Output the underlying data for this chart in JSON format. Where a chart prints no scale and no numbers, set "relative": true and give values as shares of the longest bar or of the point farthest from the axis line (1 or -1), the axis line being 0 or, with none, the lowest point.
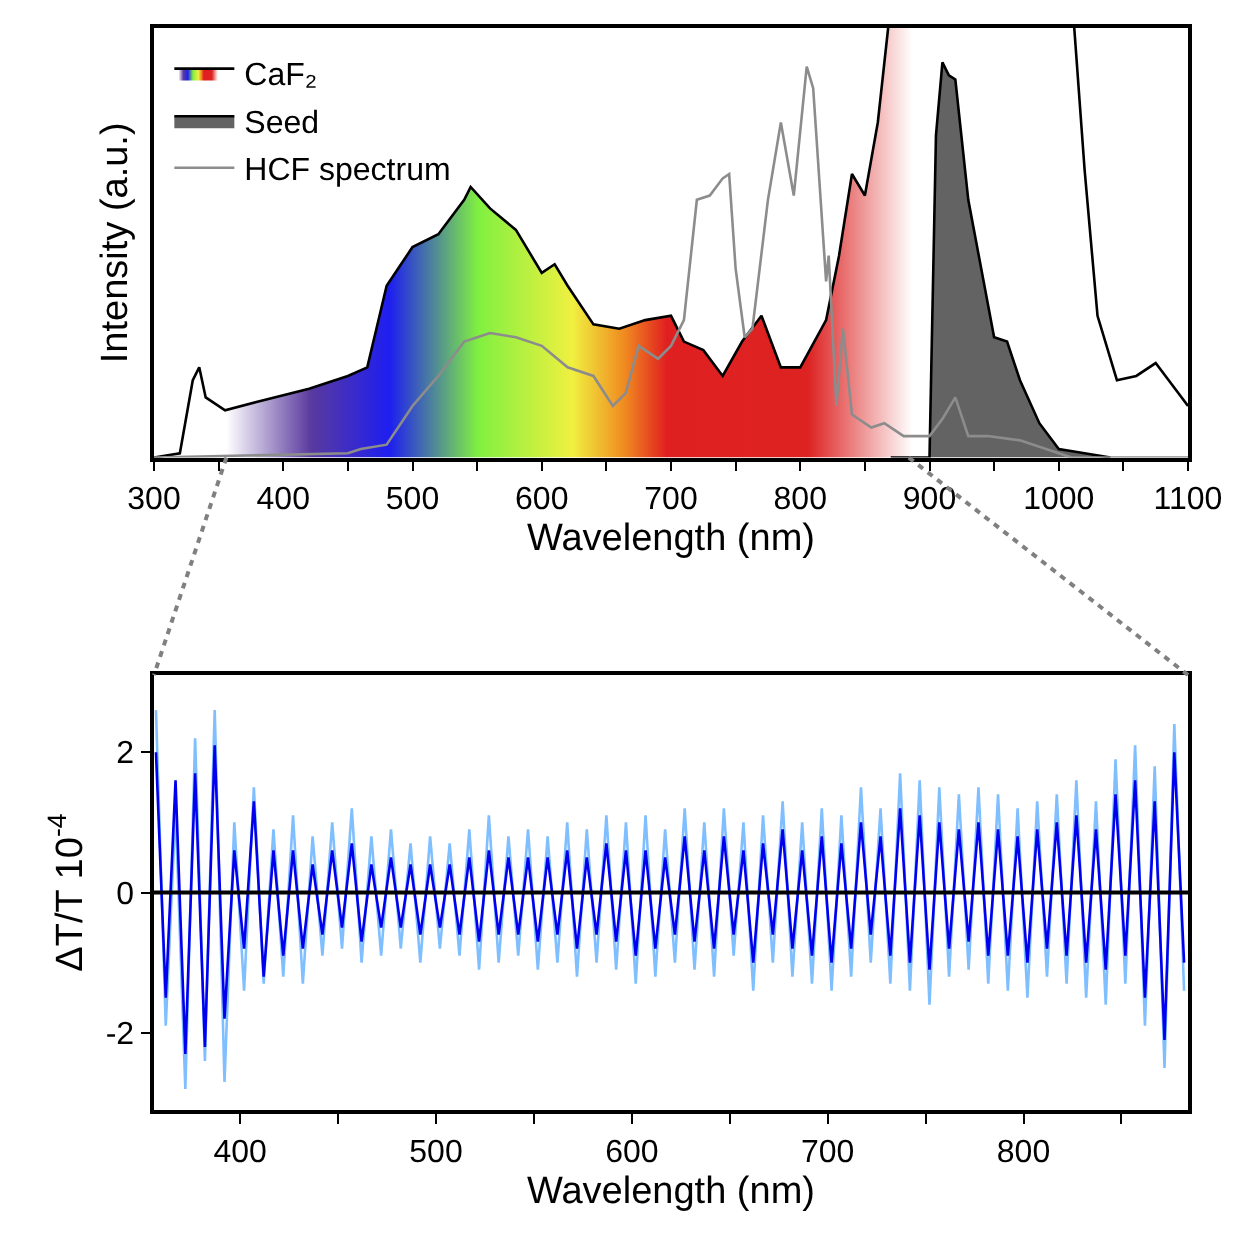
{
  "chart_data": [
    {
      "type": "line",
      "xlabel": "Wavelength (nm)",
      "ylabel": "Intensity (a.u.)",
      "relative": true,
      "legend": "top left",
      "xlim": [
        300,
        1100
      ],
      "xticks": [
        300,
        {
          "value": 350,
          "label": null
        },
        400,
        {
          "value": 450,
          "label": null
        },
        500,
        {
          "value": 550,
          "label": null
        },
        600,
        {
          "value": 650,
          "label": null
        },
        700,
        {
          "value": 750,
          "label": null
        },
        800,
        {
          "value": 850,
          "label": null
        },
        900,
        {
          "value": 950,
          "label": null
        },
        1000,
        {
          "value": 1050,
          "label": null
        },
        1100
      ],
      "series": [
        {
          "name": "CaF₂",
          "type": "area",
          "color": "#000000",
          "x": [
            300,
            320,
            330,
            335,
            340,
            355,
            380,
            420,
            450,
            465,
            480,
            500,
            520,
            540,
            545,
            560,
            580,
            600,
            610,
            620,
            640,
            660,
            680,
            700,
            710,
            725,
            740,
            755,
            770,
            785,
            800,
            820,
            830,
            840,
            850,
            860,
            868,
            880,
            1000,
            1012,
            1020,
            1030,
            1045,
            1060,
            1075,
            1090,
            1100
          ],
          "values": [
            0.0,
            0.01,
            0.18,
            0.21,
            0.14,
            0.11,
            0.13,
            0.16,
            0.19,
            0.21,
            0.4,
            0.49,
            0.52,
            0.6,
            0.63,
            0.58,
            0.53,
            0.43,
            0.45,
            0.4,
            0.31,
            0.3,
            0.32,
            0.33,
            0.27,
            0.25,
            0.19,
            0.27,
            0.33,
            0.21,
            0.21,
            0.32,
            0.47,
            0.66,
            0.61,
            0.78,
            1.0,
            null,
            null,
            1.0,
            0.67,
            0.33,
            0.18,
            0.19,
            0.22,
            0.16,
            0.12
          ]
        },
        {
          "name": "Seed",
          "type": "area",
          "color": "#636363",
          "x": [
            870,
            900,
            905,
            910,
            915,
            920,
            930,
            940,
            950,
            960,
            970,
            985,
            1000,
            1020,
            1040
          ],
          "values": [
            0,
            0,
            0.75,
            0.92,
            0.89,
            0.88,
            0.6,
            0.44,
            0.28,
            0.27,
            0.18,
            0.08,
            0.02,
            0.01,
            0
          ]
        },
        {
          "name": "HCF spectrum",
          "type": "line",
          "color": "#8c8c8c",
          "x": [
            300,
            450,
            460,
            480,
            500,
            520,
            540,
            560,
            580,
            600,
            620,
            640,
            655,
            665,
            675,
            690,
            700,
            710,
            720,
            730,
            740,
            745,
            750,
            757,
            763,
            775,
            785,
            795,
            805,
            810,
            820,
            822,
            828,
            833,
            840,
            855,
            865,
            880,
            900,
            910,
            920,
            930,
            945,
            970,
            1000,
            1010,
            1100
          ],
          "values": [
            0,
            0.01,
            0.02,
            0.03,
            0.12,
            0.19,
            0.27,
            0.29,
            0.28,
            0.26,
            0.21,
            0.19,
            0.12,
            0.15,
            0.26,
            0.23,
            0.26,
            0.32,
            0.6,
            0.61,
            0.65,
            0.66,
            0.44,
            0.28,
            0.3,
            0.6,
            0.78,
            0.61,
            0.91,
            0.86,
            0.41,
            0.47,
            0.12,
            0.3,
            0.1,
            0.07,
            0.08,
            0.05,
            0.05,
            0.09,
            0.14,
            0.05,
            0.05,
            0.04,
            0.01,
            0,
            0
          ]
        }
      ]
    },
    {
      "type": "line",
      "xlabel": "Wavelength (nm)",
      "ylabel": "ΔT/T 10$^{-4}$",
      "legend": false,
      "xlim": [
        356,
        884
      ],
      "ylim": [
        -3.1,
        3.1
      ],
      "xticks": [
        400,
        {
          "value": 450,
          "label": null
        },
        500,
        {
          "value": 550,
          "label": null
        },
        600,
        {
          "value": 650,
          "label": null
        },
        700,
        {
          "value": 750,
          "label": null
        },
        800,
        {
          "value": 850,
          "label": null
        }
      ],
      "yticks": [
        -2,
        0,
        2
      ],
      "ref_lines": [
        {
          "axis": "y",
          "value": 0,
          "color": "#000000"
        }
      ],
      "x": [
        357,
        362,
        367,
        372,
        377,
        382,
        387,
        392,
        397,
        402,
        407,
        412,
        417,
        422,
        427,
        432,
        437,
        442,
        447,
        452,
        457,
        462,
        467,
        472,
        477,
        482,
        487,
        492,
        497,
        502,
        507,
        512,
        517,
        522,
        527,
        532,
        537,
        542,
        547,
        552,
        557,
        562,
        567,
        572,
        577,
        582,
        587,
        592,
        597,
        602,
        607,
        612,
        617,
        622,
        627,
        632,
        637,
        642,
        647,
        652,
        657,
        662,
        667,
        672,
        677,
        682,
        687,
        692,
        697,
        702,
        707,
        712,
        717,
        722,
        727,
        732,
        737,
        742,
        747,
        752,
        757,
        762,
        767,
        772,
        777,
        782,
        787,
        792,
        797,
        802,
        807,
        812,
        817,
        822,
        827,
        832,
        837,
        842,
        847,
        852,
        857,
        862,
        867,
        872,
        877,
        882
      ],
      "series": [
        {
          "color": "#80bfff",
          "values": [
            2.6,
            -1.9,
            1.2,
            -2.8,
            2.2,
            -2.4,
            2.6,
            -2.7,
            1.0,
            -1.4,
            1.5,
            -1.3,
            0.9,
            -1.2,
            1.1,
            -1.3,
            0.8,
            -0.9,
            1.0,
            -0.8,
            1.2,
            -1.0,
            0.8,
            -0.9,
            0.9,
            -0.8,
            0.7,
            -1.0,
            0.8,
            -0.8,
            0.7,
            -0.9,
            0.9,
            -1.1,
            1.1,
            -1.0,
            0.8,
            -0.9,
            0.9,
            -1.1,
            0.8,
            -1.0,
            1.0,
            -1.2,
            0.9,
            -1.0,
            1.1,
            -1.1,
            1.0,
            -1.3,
            1.1,
            -1.2,
            0.9,
            -1.0,
            1.2,
            -1.1,
            1.0,
            -1.2,
            1.2,
            -0.9,
            1.0,
            -1.4,
            1.1,
            -1.0,
            1.3,
            -1.2,
            1.0,
            -1.3,
            1.2,
            -1.4,
            1.1,
            -1.2,
            1.5,
            -1.0,
            1.2,
            -1.3,
            1.7,
            -1.4,
            1.6,
            -1.6,
            1.5,
            -1.2,
            1.4,
            -1.1,
            1.5,
            -1.3,
            1.4,
            -1.4,
            1.2,
            -1.5,
            1.3,
            -1.2,
            1.4,
            -1.3,
            1.6,
            -1.5,
            1.3,
            -1.6,
            1.9,
            -1.3,
            2.1,
            -1.9,
            1.8,
            -2.5,
            2.4,
            -1.4
          ]
        },
        {
          "color": "#0000ee",
          "values": [
            2.0,
            -1.5,
            1.6,
            -2.3,
            1.7,
            -2.2,
            2.1,
            -1.8,
            0.6,
            -0.8,
            1.3,
            -1.2,
            0.6,
            -0.9,
            0.6,
            -0.8,
            0.4,
            -0.6,
            0.6,
            -0.5,
            0.7,
            -0.7,
            0.4,
            -0.5,
            0.5,
            -0.5,
            0.4,
            -0.6,
            0.4,
            -0.5,
            0.4,
            -0.6,
            0.5,
            -0.7,
            0.6,
            -0.6,
            0.5,
            -0.6,
            0.5,
            -0.7,
            0.5,
            -0.6,
            0.6,
            -0.8,
            0.5,
            -0.6,
            0.7,
            -0.7,
            0.6,
            -0.9,
            0.6,
            -0.8,
            0.5,
            -0.6,
            0.8,
            -0.7,
            0.6,
            -0.8,
            0.8,
            -0.6,
            0.6,
            -1.0,
            0.7,
            -0.6,
            0.9,
            -0.8,
            0.6,
            -0.9,
            0.8,
            -1.0,
            0.7,
            -0.8,
            1.0,
            -0.6,
            0.8,
            -0.9,
            1.2,
            -1.0,
            1.1,
            -1.1,
            1.0,
            -0.8,
            0.9,
            -0.7,
            1.0,
            -0.9,
            0.9,
            -0.9,
            0.8,
            -1.0,
            0.9,
            -0.8,
            1.0,
            -0.9,
            1.1,
            -1.0,
            0.9,
            -1.1,
            1.4,
            -0.9,
            1.6,
            -1.5,
            1.3,
            -2.1,
            2.0,
            -1.0
          ]
        }
      ]
    }
  ]
}
